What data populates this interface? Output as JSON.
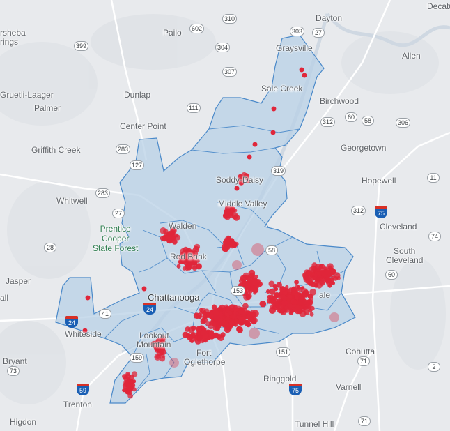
{
  "map": {
    "colors": {
      "background": "#e8eaed",
      "region_fill": "#b8d0e6",
      "region_stroke": "#4a89c9",
      "point": "#e0263a",
      "road": "#ffffff",
      "river": "#cdd6e0"
    },
    "places": [
      {
        "id": "dayton",
        "label": "Dayton"
      },
      {
        "id": "decatur",
        "label": "Decatu"
      },
      {
        "id": "sheba",
        "label": "rsheba"
      },
      {
        "id": "springs",
        "label": "rings"
      },
      {
        "id": "pailo",
        "label": "Pailo"
      },
      {
        "id": "graysville",
        "label": "Graysville"
      },
      {
        "id": "allen",
        "label": "Allen"
      },
      {
        "id": "sale-creek",
        "label": "Sale Creek"
      },
      {
        "id": "gruetli",
        "label": "Gruetli-Laager"
      },
      {
        "id": "dunlap",
        "label": "Dunlap"
      },
      {
        "id": "birchwood",
        "label": "Birchwood"
      },
      {
        "id": "palmer",
        "label": "Palmer"
      },
      {
        "id": "center-point",
        "label": "Center Point"
      },
      {
        "id": "griffith-creek",
        "label": "Griffith Creek"
      },
      {
        "id": "georgetown",
        "label": "Georgetown"
      },
      {
        "id": "soddy-daisy",
        "label": "Soddy-Daisy"
      },
      {
        "id": "hopewell",
        "label": "Hopewell"
      },
      {
        "id": "whitwell",
        "label": "Whitwell"
      },
      {
        "id": "middle-valley",
        "label": "Middle Valley"
      },
      {
        "id": "walden",
        "label": "Walden"
      },
      {
        "id": "cleveland",
        "label": "Cleveland"
      },
      {
        "id": "red-bank",
        "label": "Red Bank"
      },
      {
        "id": "south-cleveland-1",
        "label": "South"
      },
      {
        "id": "south-cleveland-2",
        "label": "Cleveland"
      },
      {
        "id": "jasper",
        "label": "Jasper"
      },
      {
        "id": "all",
        "label": "all"
      },
      {
        "id": "chattanooga",
        "label": "Chattanooga"
      },
      {
        "id": "collegedale",
        "label": "ale"
      },
      {
        "id": "whiteside",
        "label": "Whiteside"
      },
      {
        "id": "lookout-1",
        "label": "Lookout"
      },
      {
        "id": "lookout-2",
        "label": "Mountain"
      },
      {
        "id": "fort-1",
        "label": "Fort"
      },
      {
        "id": "fort-2",
        "label": "Oglethorpe"
      },
      {
        "id": "cohutta",
        "label": "Cohutta"
      },
      {
        "id": "bryant",
        "label": "Bryant"
      },
      {
        "id": "ringgold",
        "label": "Ringgold"
      },
      {
        "id": "varnell",
        "label": "Varnell"
      },
      {
        "id": "trenton",
        "label": "Trenton"
      },
      {
        "id": "higdon",
        "label": "Higdon"
      },
      {
        "id": "tunnel-hill",
        "label": "Tunnel Hill"
      }
    ],
    "park": {
      "line1": "Prentice",
      "line2": "Cooper",
      "line3": "State Forest"
    },
    "route_shields": [
      {
        "id": "r602",
        "label": "602"
      },
      {
        "id": "r310",
        "label": "310"
      },
      {
        "id": "r303",
        "label": "303"
      },
      {
        "id": "r27a",
        "label": "27"
      },
      {
        "id": "r399",
        "label": "399"
      },
      {
        "id": "r304",
        "label": "304"
      },
      {
        "id": "r307",
        "label": "307"
      },
      {
        "id": "r111",
        "label": "111"
      },
      {
        "id": "r60a",
        "label": "60"
      },
      {
        "id": "r312a",
        "label": "312"
      },
      {
        "id": "r58a",
        "label": "58"
      },
      {
        "id": "r306",
        "label": "306"
      },
      {
        "id": "r283a",
        "label": "283"
      },
      {
        "id": "r127",
        "label": "127"
      },
      {
        "id": "r319",
        "label": "319"
      },
      {
        "id": "r11",
        "label": "11"
      },
      {
        "id": "r283b",
        "label": "283"
      },
      {
        "id": "r27b",
        "label": "27"
      },
      {
        "id": "r312b",
        "label": "312"
      },
      {
        "id": "r74",
        "label": "74"
      },
      {
        "id": "r28",
        "label": "28"
      },
      {
        "id": "r58b",
        "label": "58"
      },
      {
        "id": "r60b",
        "label": "60"
      },
      {
        "id": "r41",
        "label": "41"
      },
      {
        "id": "r153",
        "label": "153"
      },
      {
        "id": "r151",
        "label": "151"
      },
      {
        "id": "r159",
        "label": "159"
      },
      {
        "id": "r73",
        "label": "73"
      },
      {
        "id": "r71a",
        "label": "71"
      },
      {
        "id": "r2",
        "label": "2"
      },
      {
        "id": "r71b",
        "label": "71"
      }
    ],
    "interstates": [
      {
        "id": "i75a",
        "label": "75"
      },
      {
        "id": "i24a",
        "label": "24"
      },
      {
        "id": "i24b",
        "label": "24"
      },
      {
        "id": "i59",
        "label": "59"
      },
      {
        "id": "i75b",
        "label": "75"
      }
    ]
  }
}
